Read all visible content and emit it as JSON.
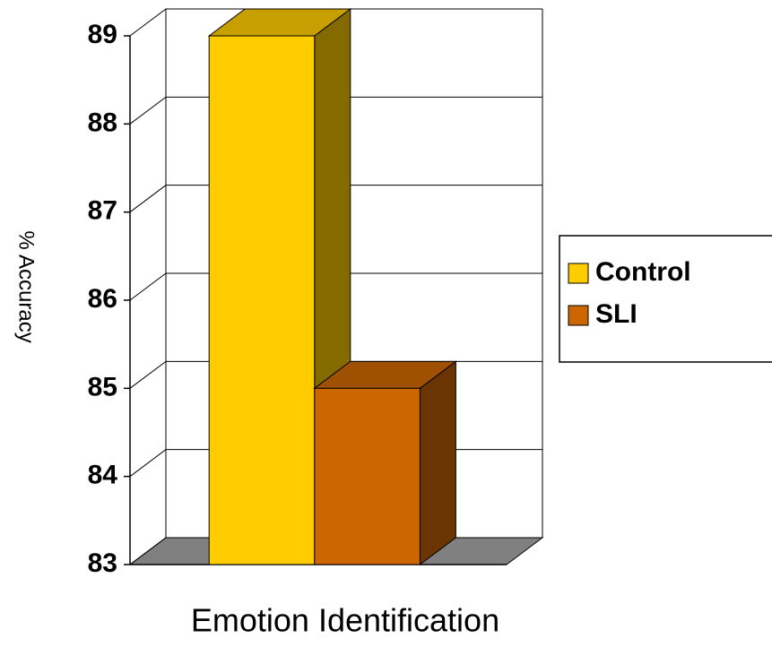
{
  "chart_data": {
    "type": "bar3d",
    "y_label": "% Accuracy",
    "categories": [
      "Emotion Identification"
    ],
    "series": [
      {
        "name": "Control",
        "color": "#FFCC00",
        "values": [
          89
        ]
      },
      {
        "name": "SLI",
        "color": "#CC6600",
        "values": [
          85
        ]
      }
    ],
    "ylim": [
      83,
      89
    ],
    "yticks": [
      83,
      84,
      85,
      86,
      87,
      88,
      89
    ],
    "grid": true,
    "legend": "right"
  }
}
